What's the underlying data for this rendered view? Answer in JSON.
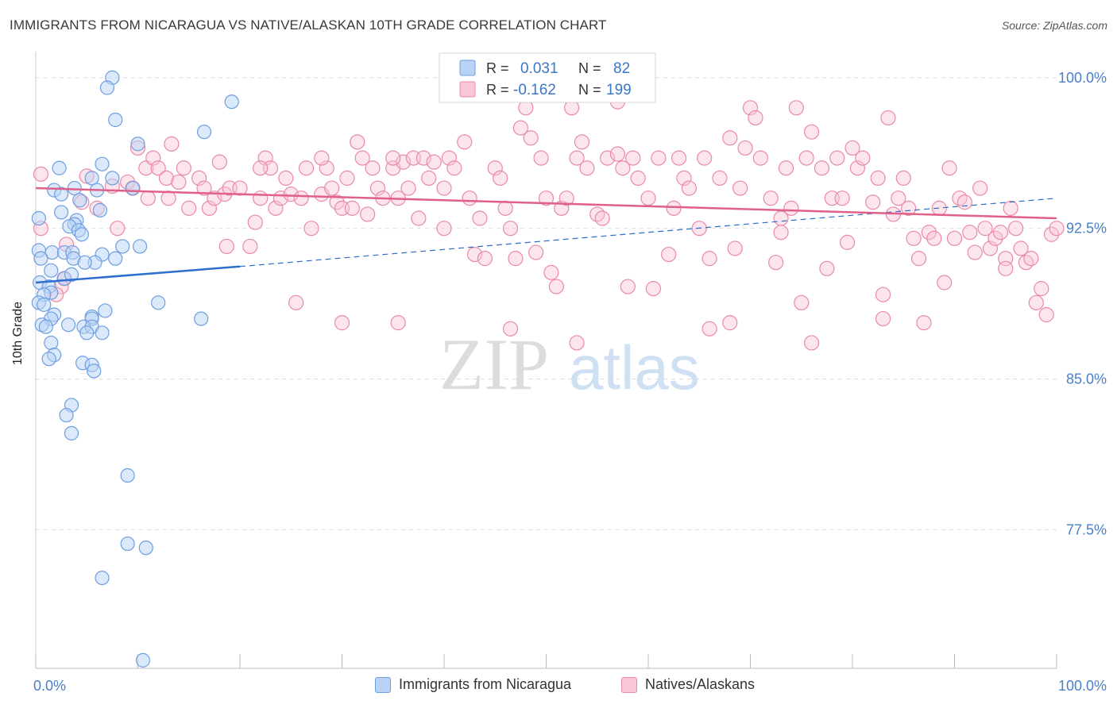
{
  "header": {
    "title": "IMMIGRANTS FROM NICARAGUA VS NATIVE/ALASKAN 10TH GRADE CORRELATION CHART",
    "source": "Source: ZipAtlas.com"
  },
  "watermark": {
    "zip": "ZIP",
    "atlas": "atlas"
  },
  "colors": {
    "blue_fill": "#b8d3f5",
    "blue_stroke": "#6e9ee0",
    "blue_line": "#2d6fce",
    "pink_fill": "#f8c6d6",
    "pink_stroke": "#e88aa8",
    "pink_line": "#e0608a",
    "axis_text": "#4a7fc8",
    "grid": "#dddddd"
  },
  "legend": {
    "r_label": "R =",
    "n_label": "N =",
    "blue": {
      "r": "0.031",
      "n": "82"
    },
    "pink": {
      "r": "-0.162",
      "n": "199"
    }
  },
  "bottom_legend": {
    "blue": "Immigrants from Nicaragua",
    "pink": "Natives/Alaskans"
  },
  "chart_data": {
    "type": "scatter",
    "xlabel": "",
    "ylabel": "10th Grade",
    "xlim": [
      0,
      100
    ],
    "ylim": [
      70.6,
      101.1
    ],
    "x_tick_labels": [
      "0.0%",
      "100.0%"
    ],
    "y_ticks": [
      {
        "value": 77.5,
        "label": "77.5%"
      },
      {
        "value": 85.0,
        "label": "85.0%"
      },
      {
        "value": 92.5,
        "label": "92.5%"
      },
      {
        "value": 100.0,
        "label": "100.0%"
      }
    ],
    "grid": "horizontal dashed",
    "legend_position": "top-center",
    "series": [
      {
        "name": "Immigrants from Nicaragua",
        "color": "#b8d3f5",
        "trend": {
          "x0": 0,
          "y0": 89.8,
          "x1": 20,
          "y1": 90.6,
          "dashed_to_x": 100,
          "dashed_to_y": 94.0
        },
        "points": [
          [
            7.5,
            100.0
          ],
          [
            7.0,
            99.5
          ],
          [
            19.2,
            98.8
          ],
          [
            7.8,
            97.9
          ],
          [
            16.5,
            97.3
          ],
          [
            10.0,
            96.7
          ],
          [
            6.5,
            95.7
          ],
          [
            2.3,
            95.5
          ],
          [
            5.5,
            95.0
          ],
          [
            7.5,
            95.0
          ],
          [
            1.8,
            94.4
          ],
          [
            3.8,
            94.5
          ],
          [
            6.0,
            94.4
          ],
          [
            9.5,
            94.5
          ],
          [
            2.5,
            94.2
          ],
          [
            4.3,
            93.9
          ],
          [
            2.5,
            93.3
          ],
          [
            6.3,
            93.4
          ],
          [
            0.3,
            93.0
          ],
          [
            4.0,
            92.9
          ],
          [
            3.8,
            92.7
          ],
          [
            3.3,
            92.6
          ],
          [
            4.2,
            92.4
          ],
          [
            4.5,
            92.2
          ],
          [
            8.5,
            91.6
          ],
          [
            10.2,
            91.6
          ],
          [
            0.3,
            91.4
          ],
          [
            1.6,
            91.3
          ],
          [
            2.8,
            91.3
          ],
          [
            3.6,
            91.3
          ],
          [
            0.5,
            91.0
          ],
          [
            3.7,
            91.0
          ],
          [
            6.5,
            91.2
          ],
          [
            7.8,
            91.0
          ],
          [
            5.8,
            90.8
          ],
          [
            4.8,
            90.8
          ],
          [
            1.5,
            90.4
          ],
          [
            2.8,
            90.0
          ],
          [
            3.5,
            90.2
          ],
          [
            0.4,
            89.8
          ],
          [
            1.3,
            89.6
          ],
          [
            1.5,
            89.3
          ],
          [
            0.8,
            89.2
          ],
          [
            0.3,
            88.8
          ],
          [
            0.8,
            88.7
          ],
          [
            12.0,
            88.8
          ],
          [
            6.8,
            88.4
          ],
          [
            1.8,
            88.2
          ],
          [
            5.5,
            88.1
          ],
          [
            1.5,
            88.0
          ],
          [
            5.5,
            88.0
          ],
          [
            16.2,
            88.0
          ],
          [
            0.6,
            87.7
          ],
          [
            3.2,
            87.7
          ],
          [
            4.7,
            87.6
          ],
          [
            5.5,
            87.6
          ],
          [
            1.0,
            87.6
          ],
          [
            6.5,
            87.3
          ],
          [
            5.0,
            87.3
          ],
          [
            1.5,
            86.8
          ],
          [
            1.8,
            86.2
          ],
          [
            1.3,
            86.0
          ],
          [
            4.6,
            85.8
          ],
          [
            5.5,
            85.7
          ],
          [
            5.7,
            85.4
          ],
          [
            3.5,
            83.7
          ],
          [
            3.0,
            83.2
          ],
          [
            3.5,
            82.3
          ],
          [
            9.0,
            80.2
          ],
          [
            9.0,
            76.8
          ],
          [
            10.8,
            76.6
          ],
          [
            6.5,
            75.1
          ],
          [
            10.5,
            71.0
          ]
        ]
      },
      {
        "name": "Natives/Alaskans",
        "color": "#f8c6d6",
        "trend": {
          "x0": 0,
          "y0": 94.5,
          "x1": 100,
          "y1": 93.0
        },
        "points": [
          [
            0.5,
            95.2
          ],
          [
            0.5,
            92.5
          ],
          [
            3.0,
            91.7
          ],
          [
            2.8,
            90.0
          ],
          [
            2.5,
            89.6
          ],
          [
            2.0,
            89.2
          ],
          [
            4.5,
            93.8
          ],
          [
            5.0,
            95.1
          ],
          [
            6.0,
            93.5
          ],
          [
            8.0,
            92.5
          ],
          [
            7.5,
            94.6
          ],
          [
            9.0,
            94.8
          ],
          [
            9.5,
            94.5
          ],
          [
            10.0,
            96.5
          ],
          [
            10.8,
            95.5
          ],
          [
            11.0,
            94.0
          ],
          [
            11.5,
            96.0
          ],
          [
            12.0,
            95.5
          ],
          [
            12.8,
            95.0
          ],
          [
            13.0,
            94.0
          ],
          [
            13.3,
            96.7
          ],
          [
            14.0,
            94.8
          ],
          [
            14.5,
            95.5
          ],
          [
            15.0,
            93.5
          ],
          [
            16.0,
            95.0
          ],
          [
            16.5,
            94.5
          ],
          [
            17.0,
            93.5
          ],
          [
            17.5,
            94.0
          ],
          [
            18.0,
            95.8
          ],
          [
            18.5,
            94.2
          ],
          [
            18.7,
            91.6
          ],
          [
            19.0,
            94.5
          ],
          [
            20.0,
            94.5
          ],
          [
            21.0,
            91.6
          ],
          [
            21.5,
            92.8
          ],
          [
            22.0,
            94.0
          ],
          [
            22.5,
            96.0
          ],
          [
            23.0,
            95.5
          ],
          [
            23.5,
            93.5
          ],
          [
            24.0,
            94.0
          ],
          [
            24.5,
            95.0
          ],
          [
            25.0,
            94.2
          ],
          [
            25.5,
            88.8
          ],
          [
            26.0,
            94.0
          ],
          [
            26.5,
            95.5
          ],
          [
            27.0,
            92.5
          ],
          [
            28.0,
            94.2
          ],
          [
            28.5,
            95.5
          ],
          [
            29.0,
            94.5
          ],
          [
            29.5,
            93.8
          ],
          [
            30.0,
            93.5
          ],
          [
            30.5,
            95.0
          ],
          [
            31.0,
            93.5
          ],
          [
            31.5,
            96.8
          ],
          [
            32.0,
            96.0
          ],
          [
            32.5,
            93.2
          ],
          [
            33.0,
            95.5
          ],
          [
            33.5,
            94.5
          ],
          [
            34.0,
            94.0
          ],
          [
            35.0,
            95.5
          ],
          [
            35.5,
            94.0
          ],
          [
            36.0,
            95.8
          ],
          [
            36.5,
            94.5
          ],
          [
            37.0,
            96.0
          ],
          [
            37.5,
            93.0
          ],
          [
            38.0,
            96.0
          ],
          [
            38.5,
            95.0
          ],
          [
            39.0,
            95.8
          ],
          [
            40.0,
            92.5
          ],
          [
            40.5,
            96.0
          ],
          [
            41.0,
            95.5
          ],
          [
            42.0,
            96.8
          ],
          [
            42.5,
            94.0
          ],
          [
            43.0,
            91.2
          ],
          [
            43.5,
            93.0
          ],
          [
            44.0,
            91.0
          ],
          [
            45.0,
            95.5
          ],
          [
            45.5,
            95.0
          ],
          [
            46.0,
            93.5
          ],
          [
            46.5,
            92.5
          ],
          [
            47.0,
            91.0
          ],
          [
            47.5,
            97.5
          ],
          [
            48.0,
            98.5
          ],
          [
            48.5,
            97.0
          ],
          [
            49.0,
            91.3
          ],
          [
            49.5,
            96.0
          ],
          [
            50.0,
            94.0
          ],
          [
            50.5,
            90.3
          ],
          [
            51.0,
            89.6
          ],
          [
            51.5,
            93.5
          ],
          [
            52.0,
            94.0
          ],
          [
            52.5,
            98.5
          ],
          [
            53.0,
            96.0
          ],
          [
            53.5,
            96.8
          ],
          [
            54.0,
            95.5
          ],
          [
            55.0,
            93.2
          ],
          [
            55.5,
            93.0
          ],
          [
            56.0,
            96.0
          ],
          [
            57.0,
            98.8
          ],
          [
            57.5,
            95.5
          ],
          [
            58.0,
            89.6
          ],
          [
            58.5,
            96.0
          ],
          [
            59.0,
            95.0
          ],
          [
            60.0,
            94.0
          ],
          [
            60.5,
            89.5
          ],
          [
            61.0,
            96.0
          ],
          [
            62.0,
            91.2
          ],
          [
            62.5,
            93.5
          ],
          [
            63.0,
            96.0
          ],
          [
            63.5,
            95.0
          ],
          [
            64.0,
            94.5
          ],
          [
            65.0,
            92.5
          ],
          [
            65.5,
            96.0
          ],
          [
            66.0,
            91.0
          ],
          [
            67.0,
            95.0
          ],
          [
            68.0,
            97.0
          ],
          [
            68.5,
            91.5
          ],
          [
            69.0,
            94.5
          ],
          [
            69.5,
            96.5
          ],
          [
            70.0,
            98.5
          ],
          [
            70.5,
            98.0
          ],
          [
            71.0,
            96.0
          ],
          [
            72.0,
            94.0
          ],
          [
            72.5,
            90.8
          ],
          [
            73.0,
            92.3
          ],
          [
            73.5,
            95.5
          ],
          [
            74.0,
            93.5
          ],
          [
            74.5,
            98.5
          ],
          [
            75.0,
            88.8
          ],
          [
            75.5,
            96.0
          ],
          [
            76.0,
            97.3
          ],
          [
            77.0,
            95.5
          ],
          [
            77.5,
            90.5
          ],
          [
            78.0,
            94.0
          ],
          [
            78.5,
            96.0
          ],
          [
            79.0,
            94.0
          ],
          [
            79.5,
            91.8
          ],
          [
            80.0,
            96.5
          ],
          [
            80.5,
            95.5
          ],
          [
            81.0,
            96.0
          ],
          [
            82.0,
            93.8
          ],
          [
            82.5,
            95.0
          ],
          [
            83.0,
            89.2
          ],
          [
            83.5,
            98.0
          ],
          [
            84.0,
            93.2
          ],
          [
            84.5,
            94.0
          ],
          [
            85.0,
            95.0
          ],
          [
            85.5,
            93.5
          ],
          [
            86.0,
            92.0
          ],
          [
            86.5,
            91.0
          ],
          [
            87.0,
            87.8
          ],
          [
            87.5,
            92.3
          ],
          [
            88.0,
            92.0
          ],
          [
            88.5,
            93.5
          ],
          [
            89.0,
            89.8
          ],
          [
            89.5,
            95.5
          ],
          [
            90.0,
            92.0
          ],
          [
            90.5,
            94.0
          ],
          [
            91.0,
            93.8
          ],
          [
            91.5,
            92.3
          ],
          [
            92.0,
            91.3
          ],
          [
            92.5,
            94.5
          ],
          [
            93.0,
            92.5
          ],
          [
            93.5,
            91.5
          ],
          [
            94.0,
            92.0
          ],
          [
            94.5,
            92.3
          ],
          [
            95.0,
            91.0
          ],
          [
            95.5,
            93.5
          ],
          [
            96.0,
            92.5
          ],
          [
            96.5,
            91.5
          ],
          [
            97.0,
            90.8
          ],
          [
            97.5,
            91.0
          ],
          [
            98.0,
            88.8
          ],
          [
            98.5,
            89.5
          ],
          [
            99.0,
            88.2
          ],
          [
            99.5,
            92.2
          ],
          [
            100.0,
            92.5
          ],
          [
            95.0,
            90.5
          ],
          [
            73.0,
            93.0
          ],
          [
            57.0,
            96.2
          ],
          [
            40.0,
            94.5
          ],
          [
            35.0,
            96.0
          ],
          [
            28.0,
            96.0
          ],
          [
            22.0,
            95.5
          ],
          [
            30.0,
            87.8
          ],
          [
            35.5,
            87.8
          ],
          [
            46.5,
            87.5
          ],
          [
            53.0,
            86.8
          ],
          [
            66.0,
            87.5
          ],
          [
            68.0,
            87.8
          ],
          [
            76.0,
            86.8
          ],
          [
            83.0,
            88.0
          ]
        ]
      }
    ]
  }
}
